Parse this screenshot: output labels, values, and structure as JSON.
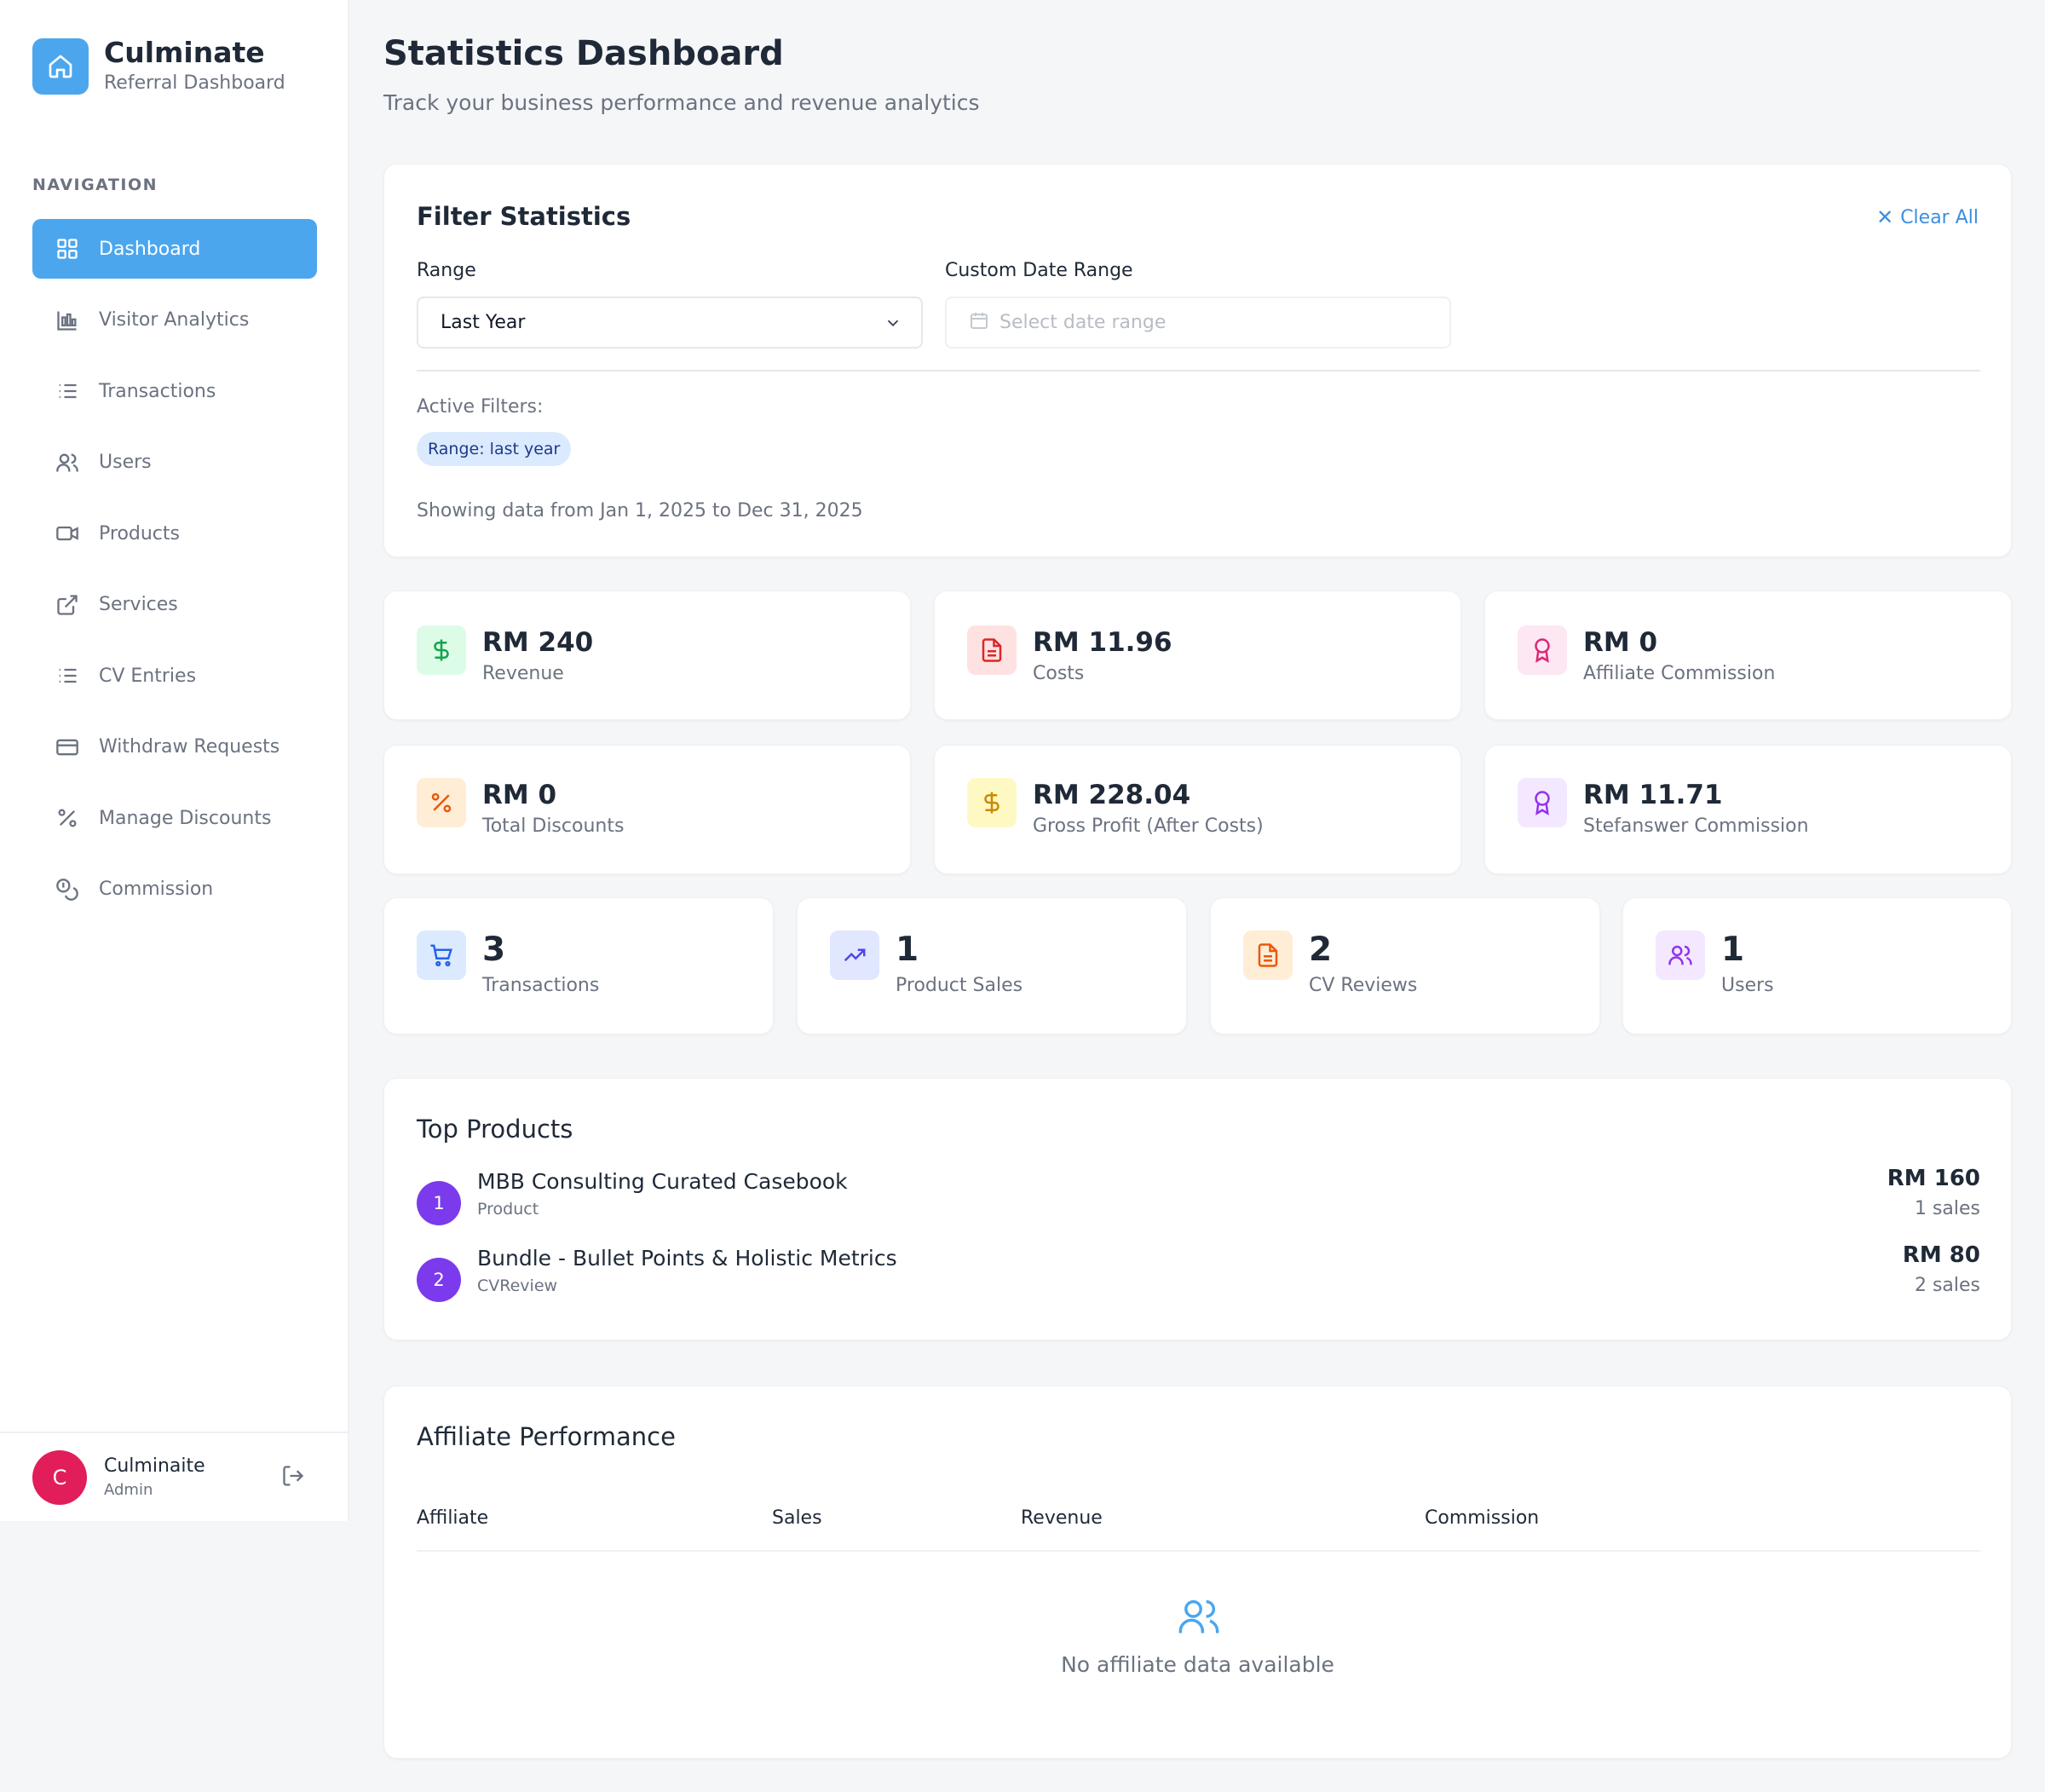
{
  "brand": {
    "title": "Culminate",
    "subtitle": "Referral Dashboard"
  },
  "nav": {
    "heading": "NAVIGATION",
    "items": [
      {
        "label": "Dashboard",
        "icon": "grid-icon",
        "active": true
      },
      {
        "label": "Visitor Analytics",
        "icon": "bar-chart-icon"
      },
      {
        "label": "Transactions",
        "icon": "list-icon"
      },
      {
        "label": "Users",
        "icon": "users-icon"
      },
      {
        "label": "Products",
        "icon": "video-icon"
      },
      {
        "label": "Services",
        "icon": "external-link-icon"
      },
      {
        "label": "CV Entries",
        "icon": "list-icon"
      },
      {
        "label": "Withdraw Requests",
        "icon": "credit-card-icon"
      },
      {
        "label": "Manage Discounts",
        "icon": "percent-icon"
      },
      {
        "label": "Commission",
        "icon": "coins-icon"
      }
    ]
  },
  "user": {
    "initial": "C",
    "name": "Culminaite",
    "role": "Admin"
  },
  "header": {
    "title": "Statistics Dashboard",
    "subtitle": "Track your business performance and revenue analytics"
  },
  "filters": {
    "title": "Filter Statistics",
    "clear_all": "Clear All",
    "range_label": "Range",
    "range_value": "Last Year",
    "date_label": "Custom Date Range",
    "date_placeholder": "Select date range",
    "active_label": "Active Filters:",
    "chip": "Range: last year",
    "showing": "Showing data from Jan 1, 2025 to Dec 31, 2025"
  },
  "stats_row1": [
    {
      "value": "RM 240",
      "label": "Revenue",
      "icon": "dollar-icon",
      "bg": "#dcfce7",
      "fg": "#16a34a"
    },
    {
      "value": "RM 11.96",
      "label": "Costs",
      "icon": "document-icon",
      "bg": "#fee2e2",
      "fg": "#dc2626"
    },
    {
      "value": "RM 0",
      "label": "Affiliate Commission",
      "icon": "award-icon",
      "bg": "#fce7f3",
      "fg": "#db2777"
    }
  ],
  "stats_row2": [
    {
      "value": "RM 0",
      "label": "Total Discounts",
      "icon": "percent-icon",
      "bg": "#ffedd5",
      "fg": "#ea580c"
    },
    {
      "value": "RM 228.04",
      "label": "Gross Profit (After Costs)",
      "icon": "dollar-icon",
      "bg": "#fef9c3",
      "fg": "#ca8a04"
    },
    {
      "value": "RM 11.71",
      "label": "Stefanswer Commission",
      "icon": "award-icon",
      "bg": "#f3e8ff",
      "fg": "#9333ea"
    }
  ],
  "stats_row3": [
    {
      "value": "3",
      "label": "Transactions",
      "icon": "cart-icon",
      "bg": "#dbeafe",
      "fg": "#2563eb"
    },
    {
      "value": "1",
      "label": "Product Sales",
      "icon": "trending-up-icon",
      "bg": "#e0e7ff",
      "fg": "#4f46e5"
    },
    {
      "value": "2",
      "label": "CV Reviews",
      "icon": "document-icon",
      "bg": "#ffedd5",
      "fg": "#ea580c"
    },
    {
      "value": "1",
      "label": "Users",
      "icon": "users-icon",
      "bg": "#f3e8ff",
      "fg": "#9333ea"
    }
  ],
  "top_products": {
    "title": "Top Products",
    "items": [
      {
        "rank": "1",
        "name": "MBB Consulting Curated Casebook",
        "type": "Product",
        "amount": "RM 160",
        "sales": "1 sales"
      },
      {
        "rank": "2",
        "name": "Bundle - Bullet Points & Holistic Metrics",
        "type": "CVReview",
        "amount": "RM 80",
        "sales": "2 sales"
      }
    ]
  },
  "affiliate": {
    "title": "Affiliate Performance",
    "columns": [
      "Affiliate",
      "Sales",
      "Revenue",
      "Commission"
    ],
    "empty": "No affiliate data available"
  },
  "colors": {
    "accent": "#4ba6ee",
    "rank": "#7c3aed",
    "avatar": "#e11d5a"
  }
}
